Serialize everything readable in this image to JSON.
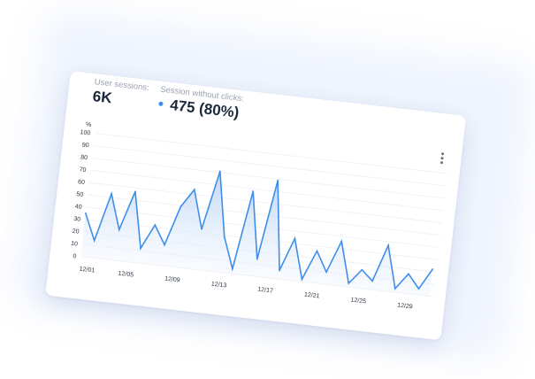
{
  "stats": {
    "sessions_label": "User sessions:",
    "sessions_value": "6K",
    "noclick_label": "Session without clicks:",
    "noclick_value": "475 (80%)"
  },
  "colors": {
    "accent": "#3e8eea",
    "area_top": "#bcd5f6",
    "area_bottom": "#eef4fd",
    "grid": "#eceef2"
  },
  "chart_data": {
    "type": "area",
    "title": "",
    "ylabel": "%",
    "ylim": [
      0,
      100
    ],
    "yticks": [
      0,
      10,
      20,
      30,
      40,
      50,
      60,
      70,
      80,
      90,
      100
    ],
    "x": [
      "12/01",
      "12/02",
      "12/03",
      "12/04",
      "12/05",
      "12/06",
      "12/07",
      "12/08",
      "12/09",
      "12/10",
      "12/11",
      "12/12",
      "12/13",
      "12/14",
      "12/15",
      "12/16",
      "12/17",
      "12/18",
      "12/19",
      "12/20",
      "12/21",
      "12/22",
      "12/23",
      "12/24",
      "12/25",
      "12/26",
      "12/27",
      "12/28",
      "12/29",
      "12/30",
      "12/31"
    ],
    "xtick_labels": [
      "12/01",
      "12/05",
      "12/09",
      "12/13",
      "12/17",
      "12/21",
      "12/25",
      "12/29"
    ],
    "series": [
      {
        "values": [
          35,
          14,
          53,
          25,
          57,
          12,
          32,
          17,
          49,
          64,
          33,
          81,
          29,
          4,
          68,
          14,
          79,
          7,
          34,
          2,
          26,
          10,
          36,
          3,
          15,
          7,
          37,
          3,
          16,
          5,
          22
        ]
      }
    ]
  }
}
